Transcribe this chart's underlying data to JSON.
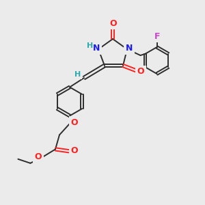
{
  "background_color": "#ebebeb",
  "bond_color": "#2d2d2d",
  "atom_colors": {
    "N": "#1a1aff",
    "O": "#ff2020",
    "F": "#cc44cc",
    "H_label": "#2aaaaa",
    "C": "#2d2d2d"
  },
  "figsize": [
    3.0,
    3.0
  ],
  "dpi": 100
}
